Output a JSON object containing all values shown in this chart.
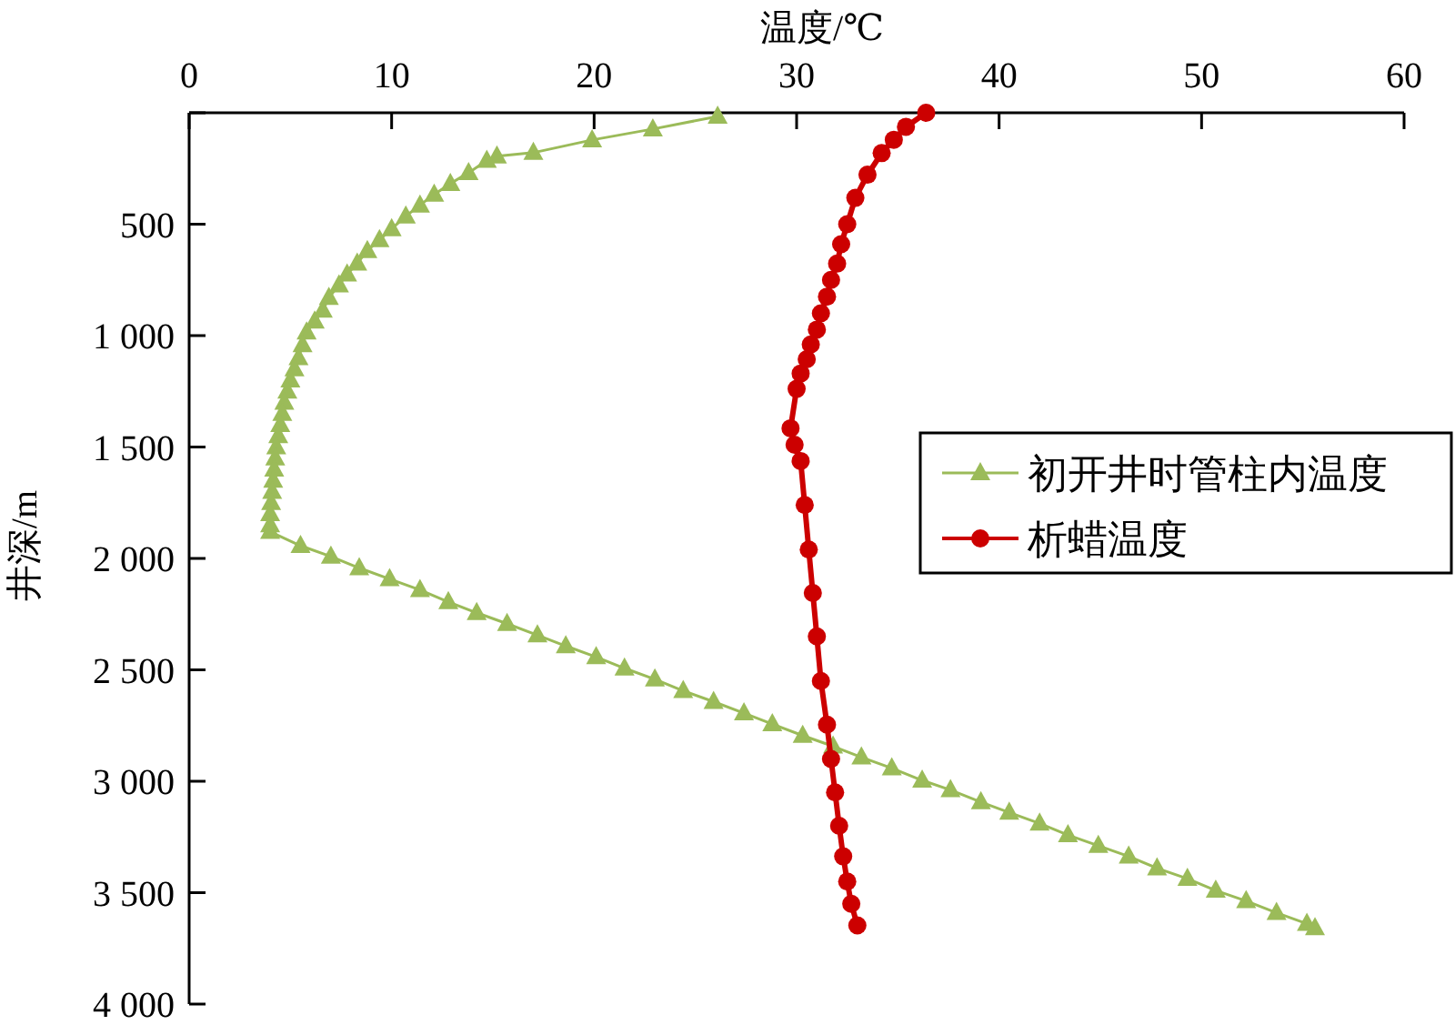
{
  "chart_data": {
    "type": "line",
    "xlabel": "温度/℃",
    "ylabel": "井深/m",
    "xlim": [
      0,
      60
    ],
    "xticks": [
      0,
      10,
      20,
      30,
      40,
      50,
      60
    ],
    "ylim": [
      4000,
      0
    ],
    "yticks": [
      {
        "value": 0,
        "label": null
      },
      500,
      {
        "value": 1000,
        "label": "1 000"
      },
      {
        "value": 1500,
        "label": "1 500"
      },
      {
        "value": 2000,
        "label": "2 000"
      },
      {
        "value": 2500,
        "label": "2 500"
      },
      {
        "value": 3000,
        "label": "3 000"
      },
      {
        "value": 3500,
        "label": "3 500"
      },
      {
        "value": 4000,
        "label": "4 000"
      }
    ],
    "grid": false,
    "legend": "right",
    "line_style": "solid",
    "series": [
      {
        "name": "初开井时管柱内温度",
        "color": "#9bbb59",
        "marker": "triangle",
        "x": [
          26.1,
          22.9,
          19.9,
          17.0,
          15.2,
          14.7,
          13.8,
          12.9,
          12.1,
          11.4,
          10.7,
          10.0,
          9.4,
          8.8,
          8.3,
          7.8,
          7.4,
          6.9,
          6.6,
          6.2,
          5.8,
          5.6,
          5.4,
          5.2,
          5.0,
          4.85,
          4.7,
          4.6,
          4.5,
          4.4,
          4.3,
          4.25,
          4.2,
          4.15,
          4.1,
          4.05,
          4.0,
          4.0,
          4.0,
          5.5,
          7.0,
          8.4,
          9.9,
          11.4,
          12.8,
          14.2,
          15.7,
          17.2,
          18.6,
          20.1,
          21.5,
          23.0,
          24.4,
          25.9,
          27.4,
          28.8,
          30.3,
          31.8,
          33.2,
          34.7,
          36.2,
          37.6,
          39.1,
          40.5,
          42.0,
          43.4,
          44.9,
          46.4,
          47.8,
          49.3,
          50.7,
          52.2,
          53.7,
          55.2,
          55.6
        ],
        "values": [
          16,
          73,
          122,
          179,
          195,
          214,
          269,
          318,
          366,
          415,
          464,
          521,
          570,
          619,
          676,
          724,
          773,
          830,
          887,
          936,
          985,
          1042,
          1100,
          1150,
          1200,
          1250,
          1300,
          1350,
          1400,
          1450,
          1500,
          1550,
          1600,
          1650,
          1700,
          1750,
          1800,
          1850,
          1880,
          1943,
          1991,
          2043,
          2092,
          2141,
          2195,
          2244,
          2293,
          2344,
          2393,
          2442,
          2493,
          2542,
          2594,
          2643,
          2694,
          2743,
          2795,
          2843,
          2892,
          2941,
          2996,
          3039,
          3093,
          3140,
          3189,
          3241,
          3289,
          3337,
          3390,
          3437,
          3490,
          3537,
          3590,
          3639,
          3658
        ]
      },
      {
        "name": "析蜡温度",
        "color": "#cc0000",
        "marker": "circle",
        "x": [
          36.4,
          35.4,
          34.8,
          34.2,
          33.5,
          32.9,
          32.5,
          32.2,
          32.0,
          31.7,
          31.5,
          31.2,
          31.0,
          30.7,
          30.5,
          30.2,
          30.0,
          29.7,
          29.9,
          30.2,
          30.4,
          30.6,
          30.8,
          31.0,
          31.2,
          31.5,
          31.7,
          31.9,
          32.1,
          32.3,
          32.5,
          32.7,
          33.0
        ],
        "values": [
          0,
          63,
          121,
          181,
          278,
          382,
          500,
          590,
          677,
          750,
          825,
          900,
          973,
          1040,
          1106,
          1170,
          1239,
          1416,
          1490,
          1563,
          1760,
          1960,
          2155,
          2350,
          2550,
          2746,
          2900,
          3050,
          3200,
          3337,
          3450,
          3550,
          3647
        ]
      }
    ]
  }
}
